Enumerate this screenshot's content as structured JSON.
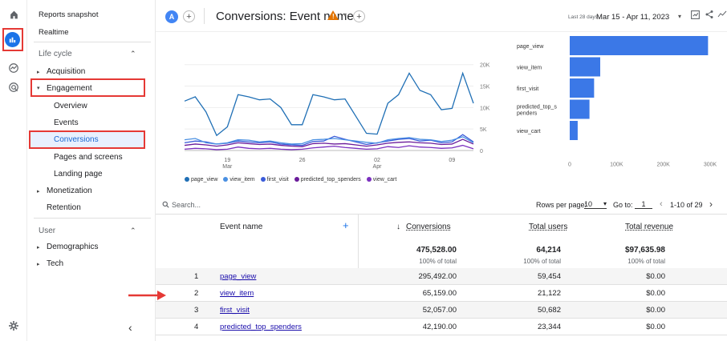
{
  "rail": {
    "icons": [
      "home-icon",
      "reports-icon",
      "explore-icon",
      "advertising-icon",
      "admin-gear-icon"
    ]
  },
  "sidebar": {
    "reports_snapshot": "Reports snapshot",
    "realtime": "Realtime",
    "lifecycle_header": "Life cycle",
    "acquisition": "Acquisition",
    "engagement": "Engagement",
    "overview": "Overview",
    "events": "Events",
    "conversions": "Conversions",
    "pages_and_screens": "Pages and screens",
    "landing_page": "Landing page",
    "monetization": "Monetization",
    "retention": "Retention",
    "user_header": "User",
    "demographics": "Demographics",
    "tech": "Tech",
    "collapse": "‹"
  },
  "header": {
    "avatar": "A",
    "title": "Conversions: Event name",
    "date_prefix": "Last 28 days",
    "date_range": "Mar 15 - Apr 11, 2023"
  },
  "line_chart": {
    "y_ticks": [
      "20K",
      "15K",
      "10K",
      "5K",
      "0"
    ],
    "x_ticks": [
      {
        "day": "19",
        "month": "Mar"
      },
      {
        "day": "26",
        "month": ""
      },
      {
        "day": "02",
        "month": "Apr"
      },
      {
        "day": "09",
        "month": ""
      }
    ],
    "legend": [
      "page_view",
      "view_item",
      "first_visit",
      "predicted_top_spenders",
      "view_cart"
    ],
    "colors": {
      "page_view": "#1f6fb5",
      "view_item": "#4a90e2",
      "first_visit": "#3a5bd9",
      "predicted_top_spenders": "#6a1b9a",
      "view_cart": "#7b2fbf"
    }
  },
  "chart_data": [
    {
      "type": "line",
      "x": [
        "Mar 15",
        "Mar 16",
        "Mar 17",
        "Mar 18",
        "Mar 19",
        "Mar 20",
        "Mar 21",
        "Mar 22",
        "Mar 23",
        "Mar 24",
        "Mar 25",
        "Mar 26",
        "Mar 27",
        "Mar 28",
        "Mar 29",
        "Mar 30",
        "Mar 31",
        "Apr 01",
        "Apr 02",
        "Apr 03",
        "Apr 04",
        "Apr 05",
        "Apr 06",
        "Apr 07",
        "Apr 08",
        "Apr 09",
        "Apr 10",
        "Apr 11"
      ],
      "ylim": [
        0,
        22000
      ],
      "yticks": [
        0,
        5000,
        10000,
        15000,
        20000
      ],
      "series": [
        {
          "name": "page_view",
          "values": [
            11500,
            12500,
            9000,
            3500,
            5500,
            13000,
            12500,
            11800,
            12000,
            10000,
            6000,
            6000,
            13000,
            12500,
            11800,
            12000,
            8000,
            4000,
            3800,
            11000,
            13000,
            18000,
            14000,
            13000,
            9500,
            9800,
            18000,
            11000
          ]
        },
        {
          "name": "view_item",
          "values": [
            2500,
            2800,
            1800,
            1500,
            1800,
            2500,
            2400,
            2000,
            2200,
            1800,
            1500,
            1600,
            2500,
            2600,
            2800,
            2500,
            2200,
            1900,
            1700,
            2500,
            2800,
            3000,
            2600,
            2500,
            2100,
            2400,
            3200,
            1800
          ]
        },
        {
          "name": "first_visit",
          "values": [
            1800,
            2200,
            2000,
            1500,
            1700,
            2200,
            2000,
            1800,
            2000,
            1500,
            1300,
            1200,
            2100,
            2200,
            3300,
            2600,
            2000,
            1400,
            1800,
            2200,
            2600,
            2800,
            2200,
            2400,
            1800,
            2000,
            3700,
            2000
          ]
        },
        {
          "name": "predicted_top_spenders",
          "values": [
            1200,
            1500,
            1300,
            1000,
            1300,
            1800,
            1600,
            1400,
            1500,
            1200,
            1000,
            900,
            1600,
            1700,
            1500,
            1600,
            1300,
            1000,
            1300,
            1700,
            1900,
            2000,
            1800,
            1700,
            1400,
            1500,
            2600,
            1500
          ]
        },
        {
          "name": "view_cart",
          "values": [
            300,
            500,
            400,
            200,
            300,
            800,
            500,
            400,
            500,
            300,
            200,
            300,
            600,
            800,
            1000,
            700,
            500,
            300,
            400,
            900,
            700,
            1100,
            800,
            700,
            500,
            600,
            1200,
            400
          ]
        }
      ]
    },
    {
      "type": "bar",
      "orientation": "horizontal",
      "categories": [
        "page_view",
        "view_item",
        "first_visit",
        "predicted_top_spenders",
        "view_cart"
      ],
      "category_labels": [
        [
          "page_view"
        ],
        [
          "view_item"
        ],
        [
          "first_visit"
        ],
        [
          "predicted_top_s",
          "penders"
        ],
        [
          "view_cart"
        ]
      ],
      "values": [
        295492,
        65159,
        52057,
        42190,
        17000
      ],
      "xlim": [
        0,
        300000
      ],
      "x_tick_values": [
        0,
        100000,
        200000,
        300000
      ],
      "xticks": [
        "0",
        "100K",
        "200K",
        "300K"
      ],
      "color": "#3b78e7"
    }
  ],
  "table": {
    "search_placeholder": "Search...",
    "rows_per_page_label": "Rows per page:",
    "rows_per_page": "10",
    "goto_label": "Go to:",
    "goto_value": "1",
    "pagination": "1-10 of 29",
    "columns": {
      "event_name": "Event name",
      "conversions": "Conversions",
      "total_users": "Total users",
      "total_revenue": "Total revenue"
    },
    "totals": {
      "conversions": "475,528.00",
      "conversions_pct": "100% of total",
      "total_users": "64,214",
      "total_users_pct": "100% of total",
      "total_revenue": "$97,635.98",
      "total_revenue_pct": "100% of total"
    },
    "rows": [
      {
        "idx": "1",
        "name": "page_view",
        "conversions": "295,492.00",
        "users": "59,454",
        "revenue": "$0.00"
      },
      {
        "idx": "2",
        "name": "view_item",
        "conversions": "65,159.00",
        "users": "21,122",
        "revenue": "$0.00"
      },
      {
        "idx": "3",
        "name": "first_visit",
        "conversions": "52,057.00",
        "users": "50,682",
        "revenue": "$0.00"
      },
      {
        "idx": "4",
        "name": "predicted_top_spenders",
        "conversions": "42,190.00",
        "users": "23,344",
        "revenue": "$0.00"
      }
    ]
  },
  "annotation_color": "#e53935"
}
